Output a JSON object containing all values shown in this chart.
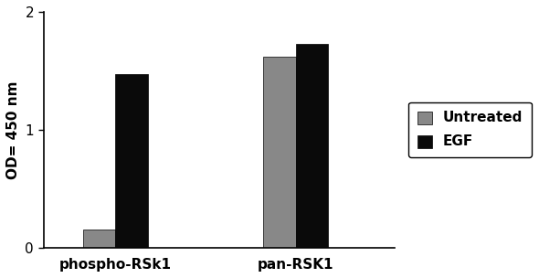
{
  "categories": [
    "phospho-RSk1",
    "pan-RSK1"
  ],
  "untreated_values": [
    0.155,
    1.62
  ],
  "egf_values": [
    1.47,
    1.73
  ],
  "bar_colors": {
    "Untreated": "#888888",
    "EGF": "#0a0a0a"
  },
  "ylabel": "OD= 450 nm",
  "ylim": [
    0,
    2
  ],
  "yticks": [
    0,
    1,
    2
  ],
  "legend_labels": [
    "Untreated",
    "EGF"
  ],
  "bar_width": 0.18,
  "group_positions": [
    0.55,
    1.55
  ],
  "background_color": "#ffffff",
  "edge_color": "#000000",
  "figsize": [
    5.9,
    3.04
  ],
  "dpi": 100
}
